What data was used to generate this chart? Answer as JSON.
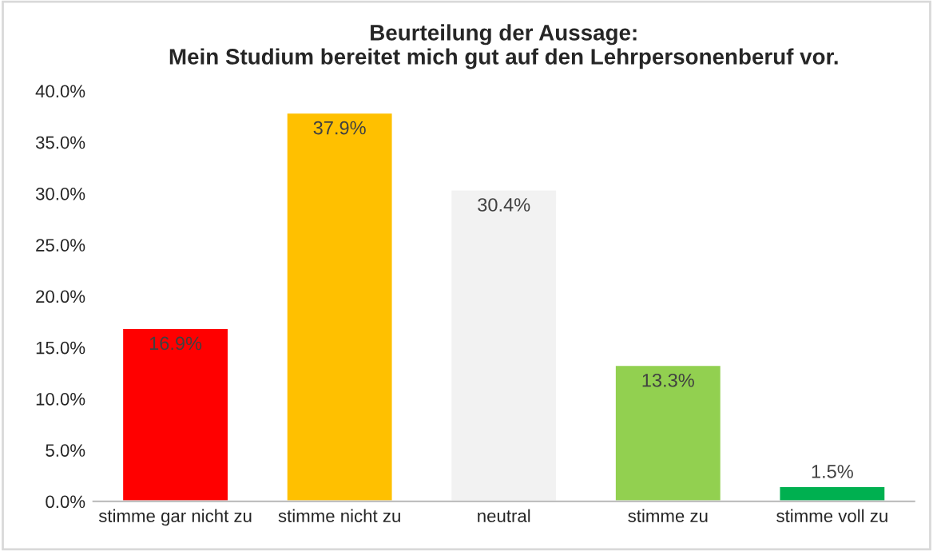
{
  "chart_data": {
    "type": "bar",
    "title": "Beurteilung der Aussage:\nMein Studium bereitet mich gut auf den Lehrpersonenberuf vor.",
    "categories": [
      "stimme gar nicht zu",
      "stimme nicht zu",
      "neutral",
      "stimme zu",
      "stimme voll zu"
    ],
    "values": [
      16.9,
      37.9,
      30.4,
      13.3,
      1.5
    ],
    "colors": [
      "#ff0000",
      "#ffc000",
      "#f2f2f2",
      "#92d050",
      "#00b050"
    ],
    "value_labels": [
      "16.9%",
      "37.9%",
      "30.4%",
      "13.3%",
      "1.5%"
    ],
    "ylim": [
      0,
      40
    ],
    "yticks": [
      {
        "value": 0,
        "label": "0.0%"
      },
      {
        "value": 5,
        "label": "5.0%"
      },
      {
        "value": 10,
        "label": "10.0%"
      },
      {
        "value": 15,
        "label": "15.0%"
      },
      {
        "value": 20,
        "label": "20.0%"
      },
      {
        "value": 25,
        "label": "25.0%"
      },
      {
        "value": 30,
        "label": "30.0%"
      },
      {
        "value": 35,
        "label": "35.0%"
      },
      {
        "value": 40,
        "label": "40.0%"
      }
    ],
    "grid": false,
    "legend": false
  }
}
